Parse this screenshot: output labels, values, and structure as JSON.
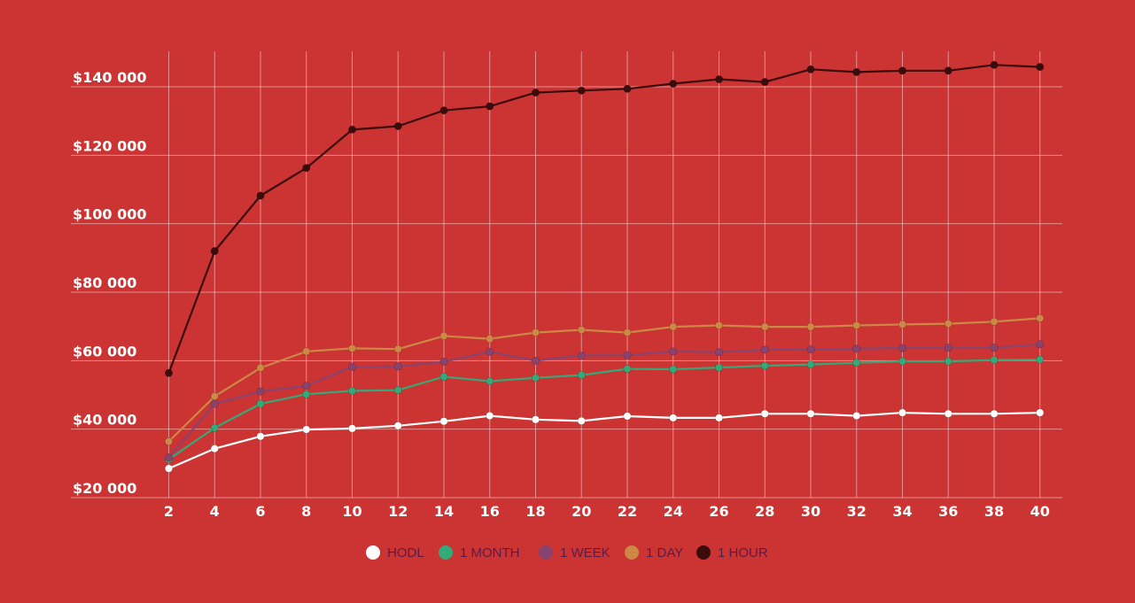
{
  "chart_data": {
    "type": "line",
    "title": "",
    "xlabel": "",
    "ylabel": "",
    "x": [
      2,
      4,
      6,
      8,
      10,
      12,
      14,
      16,
      18,
      20,
      22,
      24,
      26,
      28,
      30,
      32,
      34,
      36,
      38,
      40
    ],
    "x_ticks": [
      "2",
      "4",
      "6",
      "8",
      "10",
      "12",
      "14",
      "16",
      "18",
      "20",
      "22",
      "24",
      "26",
      "28",
      "30",
      "32",
      "34",
      "36",
      "38",
      "40"
    ],
    "y_ticks": [
      {
        "value": 20000,
        "label": "$20 000"
      },
      {
        "value": 40000,
        "label": "$40 000"
      },
      {
        "value": 60000,
        "label": "$60 000"
      },
      {
        "value": 80000,
        "label": "$80 000"
      },
      {
        "value": 100000,
        "label": "$100 000"
      },
      {
        "value": 120000,
        "label": "$120 000"
      },
      {
        "value": 140000,
        "label": "$140 000"
      }
    ],
    "xlim": [
      0,
      40.5
    ],
    "ylim": [
      20000,
      150000
    ],
    "grid": true,
    "legend_position": "bottom-center",
    "series": [
      {
        "name": "HODL",
        "color": "#FFFFFF",
        "values": [
          28500,
          34300,
          37900,
          39900,
          40200,
          41000,
          42300,
          43900,
          42800,
          42400,
          43800,
          43300,
          43300,
          44500,
          44500,
          43900,
          44800,
          44500,
          44500,
          44800
        ]
      },
      {
        "name": "1 MONTH",
        "color": "#33AA77",
        "values": [
          31200,
          40400,
          47400,
          50200,
          51200,
          51400,
          55300,
          54000,
          55000,
          55800,
          57600,
          57500,
          58000,
          58500,
          58900,
          59400,
          59800,
          59800,
          60200,
          60300
        ]
      },
      {
        "name": "1 WEEK",
        "color": "#88446E",
        "values": [
          31700,
          47400,
          51000,
          52700,
          58200,
          58300,
          59700,
          62600,
          60000,
          61500,
          61600,
          62700,
          62500,
          63200,
          63300,
          63500,
          63700,
          63800,
          63800,
          64800
        ]
      },
      {
        "name": "1 DAY",
        "color": "#CC8844",
        "values": [
          36400,
          49600,
          57900,
          62700,
          63600,
          63400,
          67200,
          66400,
          68200,
          69000,
          68200,
          69900,
          70300,
          69900,
          69900,
          70300,
          70600,
          70800,
          71400,
          72400
        ]
      },
      {
        "name": "1 HOUR",
        "color": "#3A0C0C",
        "values": [
          56400,
          92000,
          108200,
          116300,
          127500,
          128500,
          133100,
          134300,
          138300,
          138900,
          139400,
          140900,
          142200,
          141400,
          145100,
          144300,
          144700,
          144700,
          146400,
          145800
        ]
      }
    ]
  }
}
